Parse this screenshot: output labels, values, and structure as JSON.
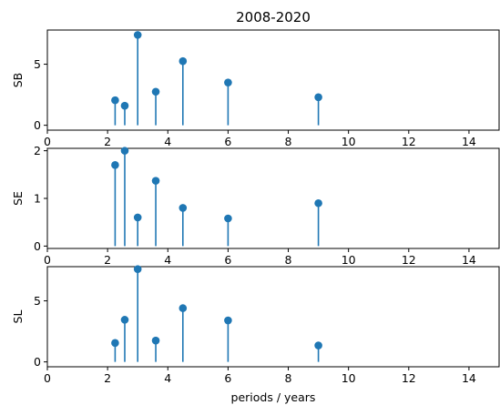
{
  "chart_data": {
    "type": "stem",
    "title": "2008-2020",
    "xlabel": "periods / years",
    "xlim": [
      0,
      15
    ],
    "xticks": [
      0,
      2,
      4,
      6,
      8,
      10,
      12,
      14
    ],
    "x": [
      2.25,
      2.57,
      3.0,
      3.6,
      4.5,
      6.0,
      9.0
    ],
    "grid": false,
    "style": {
      "marker_color": "#1f77b4",
      "stem_color": "#1f77b4"
    },
    "panels": [
      {
        "ylabel": "SB",
        "ylim": [
          -0.4,
          7.8
        ],
        "yticks": [
          0,
          5
        ],
        "values": [
          2.05,
          1.6,
          7.4,
          2.75,
          5.25,
          3.5,
          2.3
        ]
      },
      {
        "ylabel": "SE",
        "ylim": [
          -0.05,
          2.05
        ],
        "yticks": [
          0,
          1,
          2
        ],
        "values": [
          1.7,
          2.0,
          0.6,
          1.37,
          0.8,
          0.58,
          0.9
        ]
      },
      {
        "ylabel": "SL",
        "ylim": [
          -0.4,
          7.8
        ],
        "yticks": [
          0,
          5
        ],
        "values": [
          1.55,
          3.45,
          7.6,
          1.75,
          4.4,
          3.4,
          1.35
        ]
      }
    ]
  }
}
